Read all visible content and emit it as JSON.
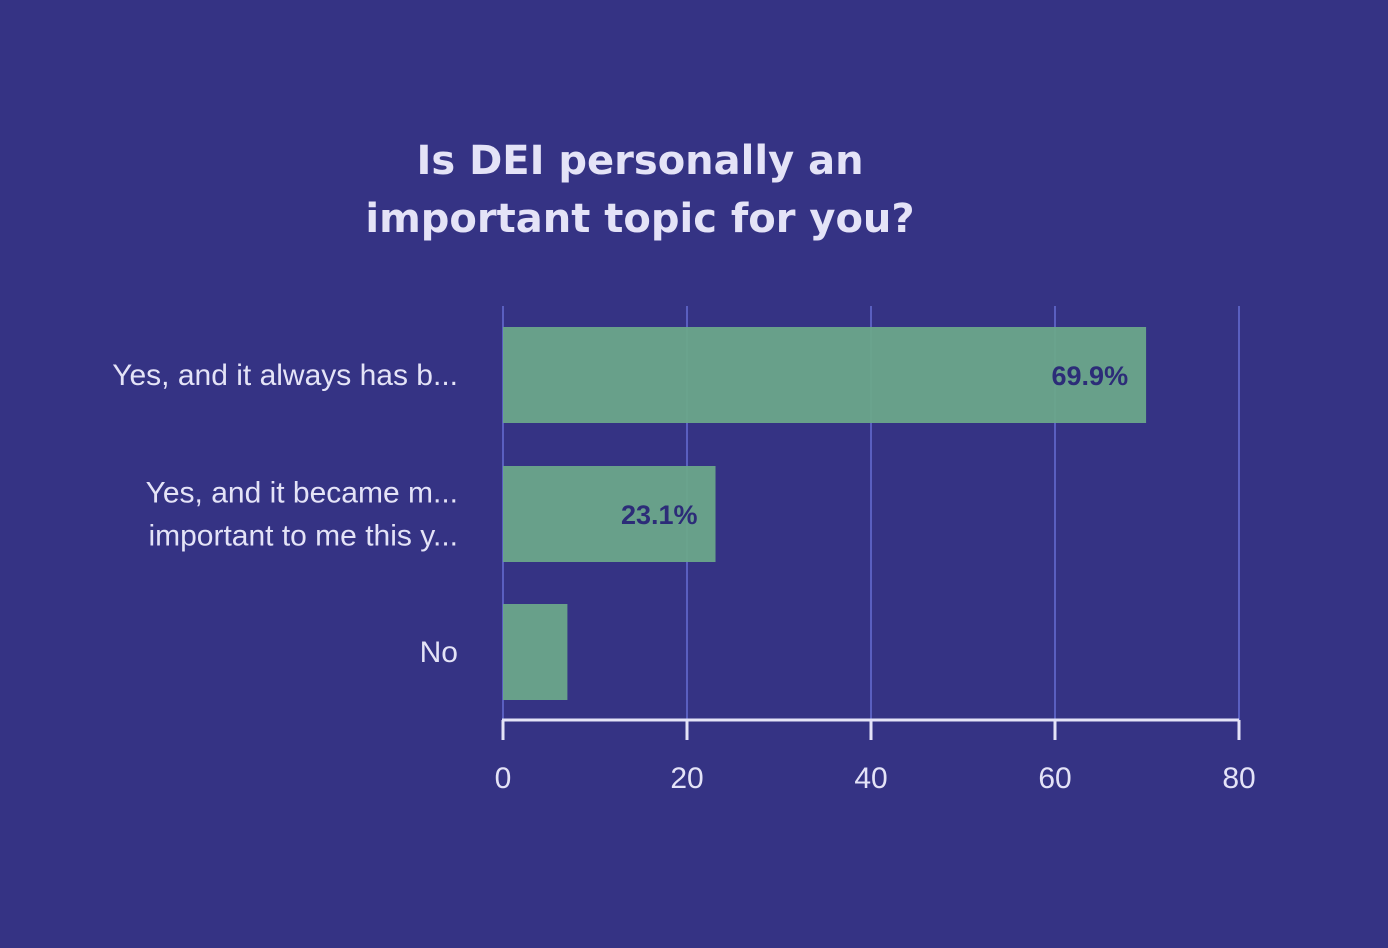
{
  "chart_data": {
    "type": "bar",
    "orientation": "horizontal",
    "title": [
      "Is DEI personally an",
      "important topic for you?"
    ],
    "categories": [
      [
        "Yes, and it always has b..."
      ],
      [
        "Yes, and it became m...",
        "important to me this y..."
      ],
      [
        "No"
      ]
    ],
    "values": [
      69.9,
      23.1,
      7
    ],
    "data_labels": [
      "69.9%",
      "23.1%",
      ""
    ],
    "xlim": [
      0,
      80
    ],
    "xticks": [
      0,
      20,
      40,
      60,
      80
    ],
    "xtick_labels": [
      "0",
      "20",
      "40",
      "60",
      "80"
    ],
    "grid": true
  },
  "colors": {
    "background": "#353384",
    "bar": "#6ca78a",
    "gridline": "#5a5fc0",
    "axis": "#e4e3f7",
    "text": "#e4e3f7",
    "data_label": "#2c2c78"
  }
}
